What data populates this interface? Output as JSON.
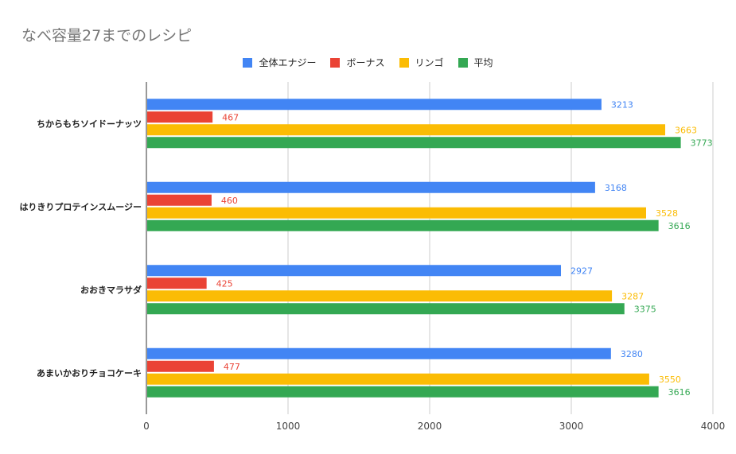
{
  "chart_data": {
    "type": "bar",
    "orientation": "horizontal",
    "title": "なべ容量27までのレシピ",
    "categories": [
      "ちからもちソイドーナッツ",
      "はりきりプロテインスムージー",
      "おおきマラサダ",
      "あまいかおりチョコケーキ"
    ],
    "series": [
      {
        "name": "全体エナジー",
        "color": "#4285f4",
        "values": [
          3213,
          3168,
          2927,
          3280
        ]
      },
      {
        "name": "ボーナス",
        "color": "#ea4335",
        "values": [
          467,
          460,
          425,
          477
        ]
      },
      {
        "name": "リンゴ",
        "color": "#fbbc04",
        "values": [
          3663,
          3528,
          3287,
          3550
        ]
      },
      {
        "name": "平均",
        "color": "#34a853",
        "values": [
          3773,
          3616,
          3375,
          3616
        ]
      }
    ],
    "xlim": [
      0,
      4000
    ],
    "xticks": [
      0,
      1000,
      2000,
      3000,
      4000
    ],
    "grid": true,
    "legend_position": "top"
  }
}
